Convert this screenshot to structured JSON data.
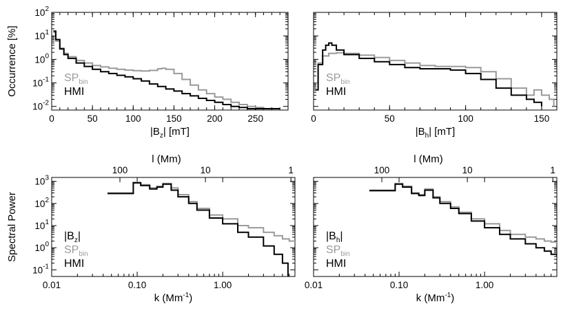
{
  "chart_data": [
    {
      "id": "bz-hist",
      "type": "line",
      "title": "",
      "xlabel": {
        "pre": "|B",
        "sub": "z",
        "post": "| [mT]"
      },
      "ylabel": "Occurrence [%]",
      "xlim": [
        0,
        290
      ],
      "ylim": [
        0.007,
        100
      ],
      "yscale": "log",
      "xticks": [
        0,
        50,
        100,
        150,
        200,
        250
      ],
      "xtick_labels": [
        "0",
        "50",
        "100",
        "150",
        "200",
        "250"
      ],
      "yticks": [
        0.01,
        0.1,
        1,
        10,
        100
      ],
      "ytick_labels": [
        {
          "base": "10",
          "exp": "-2"
        },
        {
          "base": "10",
          "exp": "-1"
        },
        {
          "base": "10",
          "exp": "0"
        },
        {
          "base": "10",
          "exp": "1"
        },
        {
          "base": "10",
          "exp": "2"
        }
      ],
      "legend": {
        "placement": "left-middle",
        "entries": [
          {
            "pre": "SP",
            "sub": "bin",
            "color": "#999999"
          },
          {
            "pre": "HMI",
            "sub": "",
            "color": "#000000"
          }
        ]
      },
      "series": [
        {
          "name": "SPbin",
          "color": "#999999",
          "x": [
            2,
            5,
            10,
            15,
            20,
            30,
            40,
            50,
            60,
            70,
            80,
            90,
            100,
            110,
            120,
            130,
            135,
            140,
            150,
            160,
            170,
            180,
            190,
            200,
            210,
            220,
            230,
            240,
            250,
            260,
            270
          ],
          "y": [
            14,
            6,
            3,
            1.8,
            1.3,
            0.9,
            0.7,
            0.55,
            0.48,
            0.42,
            0.38,
            0.35,
            0.33,
            0.32,
            0.34,
            0.4,
            0.42,
            0.38,
            0.25,
            0.14,
            0.08,
            0.05,
            0.035,
            0.025,
            0.02,
            0.015,
            0.012,
            0.01,
            0.009,
            0.008,
            0.008
          ]
        },
        {
          "name": "HMI",
          "color": "#000000",
          "x": [
            2,
            5,
            10,
            15,
            20,
            30,
            40,
            50,
            60,
            70,
            80,
            90,
            100,
            110,
            120,
            130,
            140,
            150,
            160,
            170,
            180,
            190,
            200,
            210,
            220,
            230,
            240,
            250,
            260,
            270,
            280
          ],
          "y": [
            16,
            7,
            2.8,
            1.6,
            1.1,
            0.7,
            0.5,
            0.38,
            0.3,
            0.25,
            0.21,
            0.18,
            0.15,
            0.12,
            0.09,
            0.07,
            0.055,
            0.045,
            0.035,
            0.028,
            0.022,
            0.018,
            0.015,
            0.012,
            0.01,
            0.009,
            0.008,
            0.008,
            0.008,
            0.008,
            0.008
          ]
        }
      ]
    },
    {
      "id": "bh-hist",
      "type": "line",
      "title": "",
      "xlabel": {
        "pre": "|B",
        "sub": "h",
        "post": "| [mT]"
      },
      "ylabel": "",
      "xlim": [
        0,
        160
      ],
      "ylim": [
        0.007,
        100
      ],
      "yscale": "log",
      "xticks": [
        0,
        50,
        100,
        150
      ],
      "xtick_labels": [
        "0",
        "50",
        "100",
        "150"
      ],
      "yticks": [
        0.01,
        0.1,
        1,
        10,
        100
      ],
      "ytick_labels": [],
      "legend": {
        "placement": "left-middle",
        "entries": [
          {
            "pre": "SP",
            "sub": "bin",
            "color": "#999999"
          },
          {
            "pre": "HMI",
            "sub": "",
            "color": "#000000"
          }
        ]
      },
      "series": [
        {
          "name": "SPbin",
          "color": "#999999",
          "x": [
            1,
            3,
            6,
            10,
            15,
            20,
            30,
            40,
            50,
            60,
            70,
            80,
            90,
            100,
            110,
            120,
            130,
            140,
            145,
            150,
            155,
            158
          ],
          "y": [
            0.1,
            0.7,
            1.4,
            1.8,
            1.9,
            1.8,
            1.5,
            1.2,
            0.9,
            0.7,
            0.55,
            0.5,
            0.5,
            0.45,
            0.3,
            0.15,
            0.06,
            0.03,
            0.05,
            0.03,
            0.02,
            0.01
          ]
        },
        {
          "name": "HMI",
          "color": "#000000",
          "x": [
            1,
            3,
            6,
            8,
            10,
            12,
            15,
            20,
            30,
            40,
            50,
            60,
            70,
            80,
            90,
            100,
            110,
            120,
            130,
            140,
            145,
            150
          ],
          "y": [
            0.05,
            0.6,
            2.5,
            4,
            5,
            4,
            2.5,
            1.6,
            1.1,
            0.8,
            0.6,
            0.45,
            0.4,
            0.4,
            0.35,
            0.25,
            0.14,
            0.06,
            0.03,
            0.02,
            0.015,
            0.01
          ]
        }
      ]
    },
    {
      "id": "bz-power",
      "type": "line",
      "title": "",
      "xlabel": {
        "pre": "k (Mm",
        "sup": "-1",
        "post": ")"
      },
      "ylabel": "Spectral Power",
      "top_axis_label": "l (Mm)",
      "top_ticks": [
        100,
        10,
        1
      ],
      "top_tick_labels": [
        "100",
        "10",
        "1"
      ],
      "xlim": [
        0.01,
        7
      ],
      "ylim": [
        0.05,
        1500
      ],
      "xscale": "log",
      "yscale": "log",
      "xticks": [
        0.01,
        0.1,
        1
      ],
      "xtick_labels": [
        "0.01",
        "0.10",
        "1.00"
      ],
      "yticks": [
        0.1,
        1,
        10,
        100,
        1000
      ],
      "ytick_labels": [
        {
          "base": "10",
          "exp": "-1"
        },
        {
          "base": "10",
          "exp": "0"
        },
        {
          "base": "10",
          "exp": "1"
        },
        {
          "base": "10",
          "exp": "2"
        },
        {
          "base": "10",
          "exp": "3"
        }
      ],
      "legend": {
        "placement": "left-bottom",
        "entries": [
          {
            "pre": "|B",
            "sub": "z",
            "post": "|",
            "color": "#000000"
          },
          {
            "pre": "SP",
            "sub": "bin",
            "color": "#999999"
          },
          {
            "pre": "HMI",
            "sub": "",
            "color": "#000000"
          }
        ]
      },
      "series": [
        {
          "name": "SPbin",
          "color": "#999999",
          "x": [
            0.045,
            0.07,
            0.09,
            0.11,
            0.14,
            0.17,
            0.2,
            0.25,
            0.3,
            0.4,
            0.5,
            0.7,
            1,
            1.5,
            2,
            3,
            4,
            5,
            6,
            7
          ],
          "y": [
            300,
            300,
            900,
            700,
            500,
            600,
            800,
            500,
            250,
            120,
            60,
            30,
            20,
            10,
            8,
            5,
            3.5,
            2.5,
            2,
            1.5
          ]
        },
        {
          "name": "HMI",
          "color": "#000000",
          "x": [
            0.045,
            0.07,
            0.09,
            0.11,
            0.14,
            0.17,
            0.2,
            0.25,
            0.3,
            0.4,
            0.5,
            0.7,
            1,
            1.5,
            2,
            3,
            4,
            5,
            5.8
          ],
          "y": [
            280,
            280,
            850,
            650,
            450,
            550,
            750,
            400,
            200,
            100,
            50,
            22,
            12,
            5,
            3,
            1.2,
            0.5,
            0.2,
            0.05
          ]
        }
      ]
    },
    {
      "id": "bh-power",
      "type": "line",
      "title": "",
      "xlabel": {
        "pre": "k (Mm",
        "sup": "-1",
        "post": ")"
      },
      "ylabel": "",
      "top_axis_label": "l (Mm)",
      "top_ticks": [
        100,
        10,
        1
      ],
      "top_tick_labels": [
        "100",
        "10",
        "1"
      ],
      "xlim": [
        0.01,
        7
      ],
      "ylim": [
        0.05,
        1500
      ],
      "xscale": "log",
      "yscale": "log",
      "xticks": [
        0.01,
        0.1,
        1
      ],
      "xtick_labels": [
        "0.01",
        "0.10",
        "1.00"
      ],
      "yticks": [
        0.1,
        1,
        10,
        100,
        1000
      ],
      "ytick_labels": [],
      "legend": {
        "placement": "left-bottom",
        "entries": [
          {
            "pre": "|B",
            "sub": "h",
            "post": "|",
            "color": "#000000"
          },
          {
            "pre": "SP",
            "sub": "bin",
            "color": "#999999"
          },
          {
            "pre": "HMI",
            "sub": "",
            "color": "#000000"
          }
        ]
      },
      "series": [
        {
          "name": "SPbin",
          "color": "#999999",
          "x": [
            0.045,
            0.07,
            0.09,
            0.11,
            0.14,
            0.17,
            0.2,
            0.25,
            0.3,
            0.4,
            0.5,
            0.7,
            1,
            1.5,
            2,
            3,
            4,
            5,
            6,
            7
          ],
          "y": [
            400,
            400,
            800,
            600,
            300,
            250,
            450,
            200,
            120,
            70,
            40,
            20,
            12,
            6,
            4,
            3,
            2.5,
            2,
            1.8,
            1.5
          ]
        },
        {
          "name": "HMI",
          "color": "#000000",
          "x": [
            0.045,
            0.07,
            0.09,
            0.11,
            0.14,
            0.17,
            0.2,
            0.25,
            0.3,
            0.4,
            0.5,
            0.7,
            1,
            1.5,
            2,
            3,
            4,
            5,
            6,
            7
          ],
          "y": [
            380,
            380,
            750,
            550,
            280,
            230,
            400,
            180,
            100,
            60,
            35,
            16,
            8,
            4,
            2.5,
            1.5,
            1,
            0.7,
            0.5,
            0.4
          ]
        }
      ]
    }
  ]
}
